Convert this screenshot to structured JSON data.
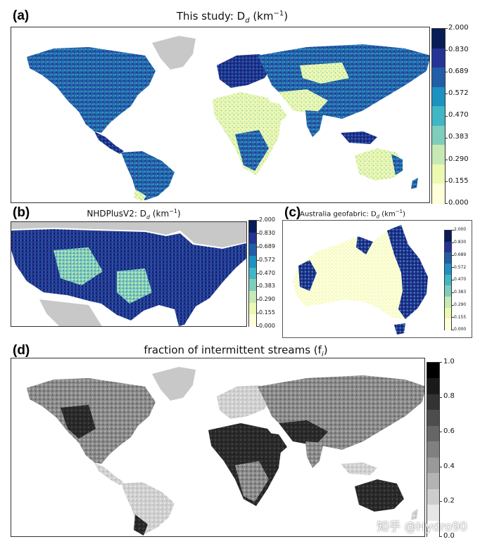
{
  "chart_data": [
    {
      "type": "heatmap",
      "panel": "(a)",
      "title": "This study: D",
      "title_sub": "d",
      "title_unit": " (km",
      "title_exp": "−1",
      "title_close": ")",
      "colorbar_ticks": [
        "2.000",
        "0.830",
        "0.689",
        "0.572",
        "0.470",
        "0.383",
        "0.290",
        "0.155",
        "0.000"
      ],
      "colors": [
        "#081d58",
        "#253494",
        "#225ea8",
        "#1d91c0",
        "#41b6c4",
        "#7fcdbb",
        "#c7e9b4",
        "#edf8b1",
        "#ffffd9"
      ],
      "no_data_color": "#c8c8c8"
    },
    {
      "type": "heatmap",
      "panel": "(b)",
      "title": "NHDPlusV2: D",
      "title_sub": "d",
      "title_unit": " (km",
      "title_exp": "−1",
      "title_close": ")",
      "colorbar_ticks": [
        "2.000",
        "0.830",
        "0.689",
        "0.572",
        "0.470",
        "0.383",
        "0.290",
        "0.155",
        "0.000"
      ],
      "colors": [
        "#081d58",
        "#253494",
        "#225ea8",
        "#1d91c0",
        "#41b6c4",
        "#7fcdbb",
        "#c7e9b4",
        "#edf8b1",
        "#ffffd9"
      ]
    },
    {
      "type": "heatmap",
      "panel": "(c)",
      "title": "Australia geofabric: D",
      "title_sub": "d",
      "title_unit": " (km",
      "title_exp": "−1",
      "title_close": ")",
      "colorbar_ticks": [
        "2.000",
        "0.830",
        "0.689",
        "0.572",
        "0.470",
        "0.383",
        "0.290",
        "0.155",
        "0.000"
      ],
      "colors": [
        "#081d58",
        "#253494",
        "#225ea8",
        "#1d91c0",
        "#41b6c4",
        "#7fcdbb",
        "#c7e9b4",
        "#edf8b1",
        "#ffffd9"
      ]
    },
    {
      "type": "heatmap",
      "panel": "(d)",
      "title": "fraction of intermittent streams (f",
      "title_sub": "i",
      "title_close": ")",
      "colorbar_ticks": [
        "1.0",
        "0.8",
        "0.6",
        "0.4",
        "0.2",
        "0.0"
      ],
      "colorbar_range": [
        0.0,
        1.0
      ],
      "colors": [
        "#000000",
        "#1a1a1a",
        "#333333",
        "#4d4d4d",
        "#666666",
        "#808080",
        "#999999",
        "#b3b3b3",
        "#cccccc",
        "#e6e6e6",
        "#ffffff"
      ]
    }
  ],
  "watermark": "知乎 @Hydro90"
}
